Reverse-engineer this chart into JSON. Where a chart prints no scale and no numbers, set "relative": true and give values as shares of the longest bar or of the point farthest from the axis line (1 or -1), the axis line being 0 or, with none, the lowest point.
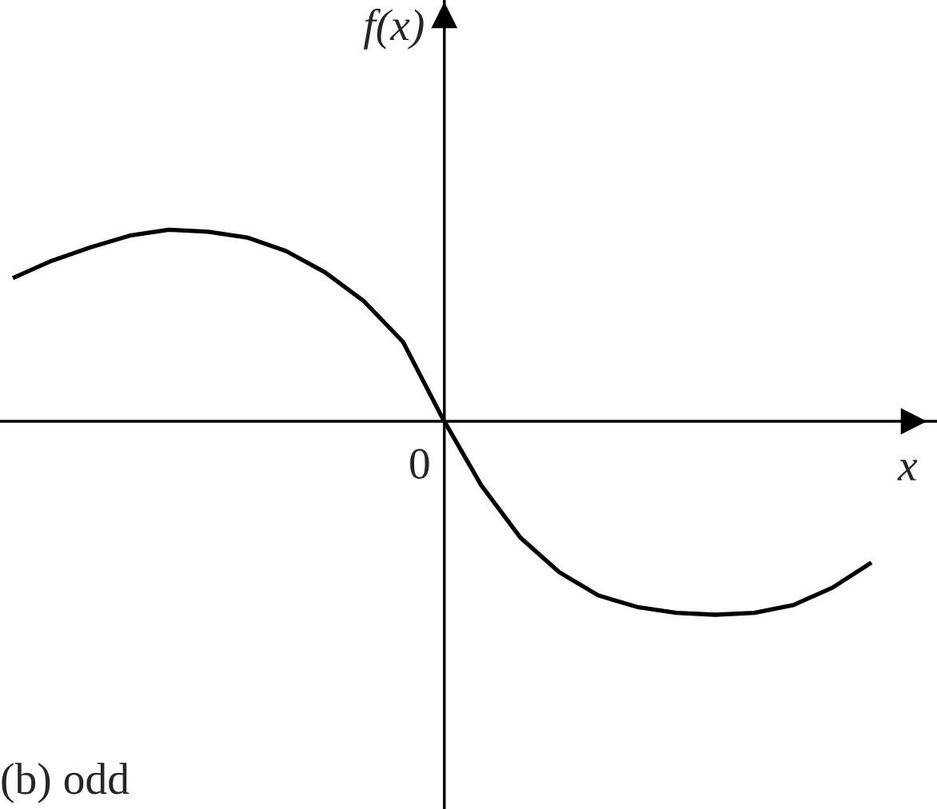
{
  "chart_data": {
    "type": "line",
    "relative": true,
    "xlabel": "x",
    "ylabel": "f(x)",
    "categories": [
      null,
      null,
      null,
      null,
      null,
      null,
      null,
      null,
      null,
      null,
      null,
      null,
      null,
      null,
      null,
      null,
      null,
      null,
      null,
      null,
      null,
      null,
      null
    ],
    "series": [
      {
        "color": "#000000",
        "values": [
          0.74,
          0.83,
          0.9,
          0.96,
          0.99,
          0.98,
          0.95,
          0.88,
          0.77,
          0.62,
          0.41,
          0.02,
          -0.33,
          -0.6,
          -0.78,
          -0.9,
          -0.96,
          -0.99,
          -1,
          -0.99,
          -0.95,
          -0.86,
          -0.73
        ]
      }
    ],
    "annotations": [
      "0",
      "(b) odd"
    ]
  }
}
